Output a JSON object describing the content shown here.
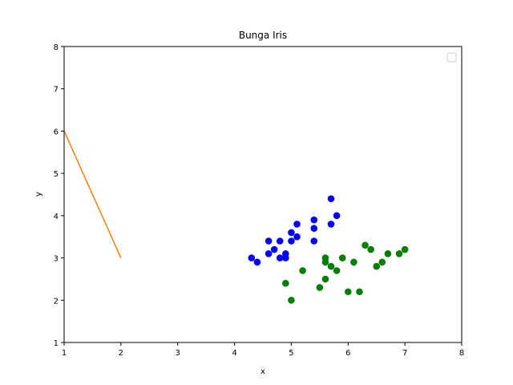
{
  "chart_data": {
    "type": "scatter",
    "title": "Bunga Iris",
    "xlabel": "x",
    "ylabel": "y",
    "xlim": [
      1,
      8
    ],
    "ylim": [
      1,
      8
    ],
    "xticks": [
      "1",
      "2",
      "3",
      "4",
      "5",
      "6",
      "7",
      "8"
    ],
    "yticks": [
      "1",
      "2",
      "3",
      "4",
      "5",
      "6",
      "7",
      "8"
    ],
    "grid": false,
    "legend": {
      "placement": "top-right",
      "entries": []
    },
    "series": [
      {
        "type": "scatter",
        "color": "#0000ff",
        "points": [
          [
            4.3,
            3.0
          ],
          [
            4.4,
            2.9
          ],
          [
            4.6,
            3.1
          ],
          [
            4.6,
            3.4
          ],
          [
            4.7,
            3.2
          ],
          [
            4.8,
            3.0
          ],
          [
            4.8,
            3.4
          ],
          [
            4.9,
            3.0
          ],
          [
            4.9,
            3.1
          ],
          [
            5.0,
            3.4
          ],
          [
            5.0,
            3.6
          ],
          [
            5.1,
            3.5
          ],
          [
            5.1,
            3.8
          ],
          [
            5.4,
            3.4
          ],
          [
            5.4,
            3.7
          ],
          [
            5.4,
            3.9
          ],
          [
            5.7,
            3.8
          ],
          [
            5.7,
            4.4
          ],
          [
            5.8,
            4.0
          ]
        ]
      },
      {
        "type": "scatter",
        "color": "#008000",
        "points": [
          [
            4.9,
            2.4
          ],
          [
            5.0,
            2.0
          ],
          [
            5.2,
            2.7
          ],
          [
            5.5,
            2.3
          ],
          [
            5.6,
            2.5
          ],
          [
            5.6,
            2.9
          ],
          [
            5.6,
            3.0
          ],
          [
            5.7,
            2.8
          ],
          [
            5.8,
            2.7
          ],
          [
            5.9,
            3.0
          ],
          [
            6.0,
            2.2
          ],
          [
            6.1,
            2.9
          ],
          [
            6.2,
            2.2
          ],
          [
            6.3,
            3.3
          ],
          [
            6.4,
            3.2
          ],
          [
            6.5,
            2.8
          ],
          [
            6.6,
            2.9
          ],
          [
            6.7,
            3.1
          ],
          [
            6.9,
            3.1
          ],
          [
            7.0,
            3.2
          ]
        ]
      },
      {
        "type": "line",
        "color": "#ff7f0e",
        "points": [
          [
            1,
            6
          ],
          [
            2,
            3
          ]
        ]
      }
    ]
  }
}
